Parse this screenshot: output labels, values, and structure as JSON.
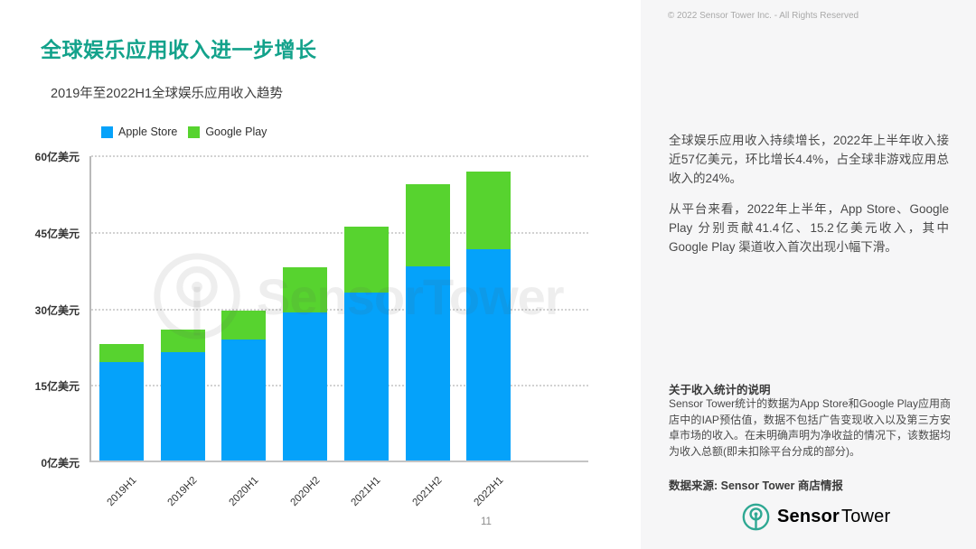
{
  "header": {
    "title": "全球娱乐应用收入进一步增长",
    "subtitle": "2019年至2022H1全球娱乐应用收入趋势"
  },
  "colors": {
    "title_teal": "#13a28b",
    "logo_teal": "#2ea893",
    "apple_blue": "#05a2fa",
    "google_green": "#57d32f"
  },
  "chart_data": {
    "type": "bar",
    "stacked": true,
    "categories": [
      "2019H1",
      "2019H2",
      "2020H1",
      "2020H2",
      "2021H1",
      "2021H2",
      "2022H1"
    ],
    "series": [
      {
        "name": "Apple Store",
        "color": "#05a2fa",
        "values": [
          19.3,
          21.2,
          23.7,
          29.0,
          32.9,
          38.1,
          41.4
        ]
      },
      {
        "name": "Google Play",
        "color": "#57d32f",
        "values": [
          3.5,
          4.5,
          5.7,
          8.9,
          12.9,
          16.1,
          15.2
        ]
      }
    ],
    "totals": [
      22.8,
      25.7,
      29.4,
      37.9,
      45.8,
      54.2,
      56.6
    ],
    "yticks": [
      {
        "value": 0,
        "label": "0亿美元"
      },
      {
        "value": 15,
        "label": "15亿美元"
      },
      {
        "value": 30,
        "label": "30亿美元"
      },
      {
        "value": 45,
        "label": "45亿美元"
      },
      {
        "value": 60,
        "label": "60亿美元"
      }
    ],
    "ylim": [
      0,
      60
    ],
    "grid": "dotted horizontal",
    "legend_position": "top",
    "title": "2019年至2022H1全球娱乐应用收入趋势",
    "xlabel": "",
    "ylabel": "亿美元"
  },
  "watermark": {
    "text": "SensorTower"
  },
  "footer": {
    "page_number": "11"
  },
  "sidebar": {
    "copyright": "© 2022 Sensor Tower Inc. - All Rights Reserved",
    "paragraphs": [
      "全球娱乐应用收入持续增长，2022年上半年收入接近57亿美元，环比增长4.4%，占全球非游戏应用总收入的24%。",
      "从平台来看，2022年上半年，App Store、Google Play 分别贡献41.4亿、15.2亿美元收入，其中Google Play 渠道收入首次出现小幅下滑。"
    ],
    "notes": {
      "heading": "关于收入统计的说明",
      "body": "Sensor Tower统计的数据为App Store和Google Play应用商店中的IAP预估值，数据不包括广告变现收入以及第三方安卓市场的收入。在未明确声明为净收益的情况下，该数据均为收入总额(即未扣除平台分成的部分)。",
      "source": "数据来源: Sensor Tower 商店情报"
    },
    "logo": {
      "bold": "Sensor",
      "regular": "Tower"
    }
  }
}
